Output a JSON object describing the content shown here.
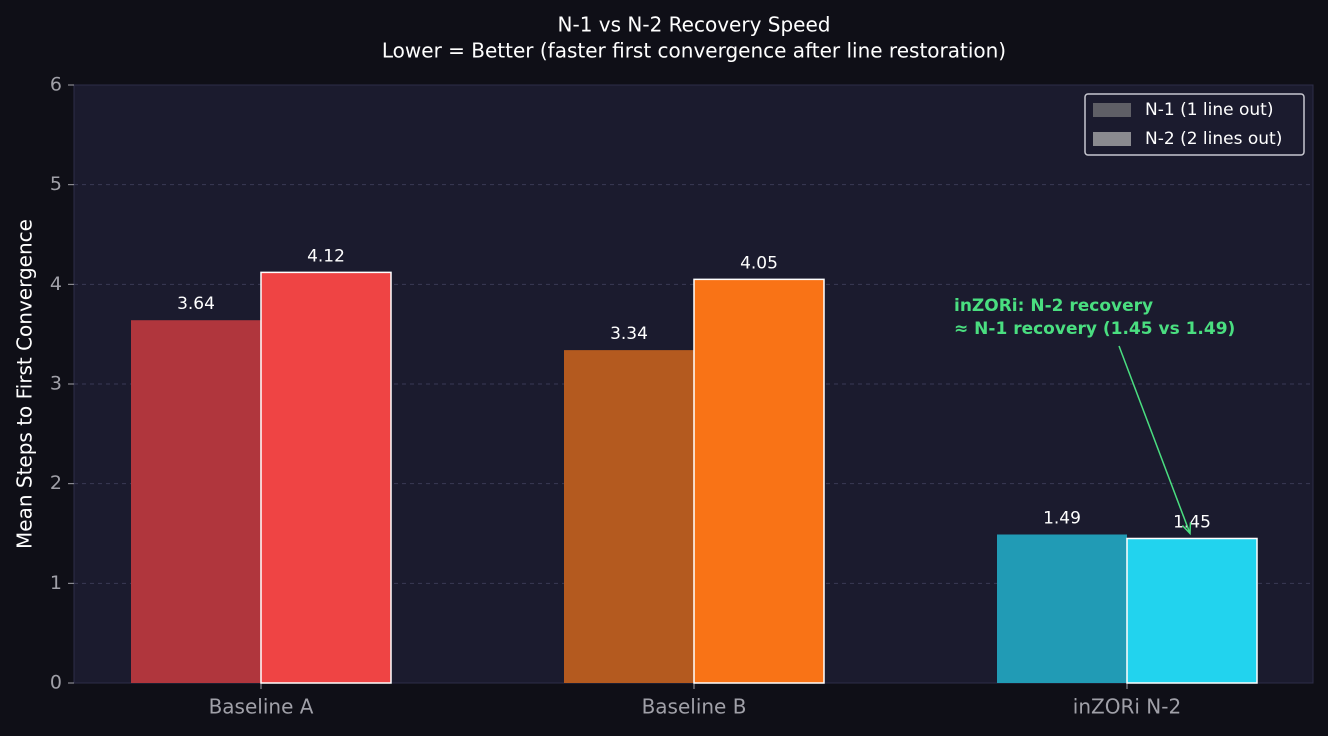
{
  "chart_data": {
    "type": "bar",
    "title": "N-1 vs N-2 Recovery Speed",
    "subtitle": "Lower = Better (faster first convergence after line restoration)",
    "y_label": "Mean Steps to First Convergence",
    "categories": [
      "Baseline A",
      "Baseline B",
      "inZORi N-2"
    ],
    "series": [
      {
        "name": "N-1 (1 line out)",
        "color": "#5f5f66",
        "bar_colors": [
          "#b0363d",
          "#b45a1f",
          "#219bb5"
        ],
        "values": [
          3.64,
          3.34,
          1.49
        ]
      },
      {
        "name": "N-2 (2 lines out)",
        "color": "#8a8a8f",
        "bar_colors": [
          "#ef4444",
          "#f97316",
          "#22d3ee"
        ],
        "values": [
          4.12,
          4.05,
          1.45
        ]
      }
    ],
    "ylim": [
      0,
      6
    ],
    "yticks": [
      0,
      1,
      2,
      3,
      4,
      5,
      6
    ],
    "grid": true,
    "legend": "upper right",
    "annotation": {
      "lines": [
        "inZORi: N-2 recovery",
        "≈ N-1 recovery (1.45 vs 1.49)"
      ],
      "color": "#4ade80"
    }
  }
}
